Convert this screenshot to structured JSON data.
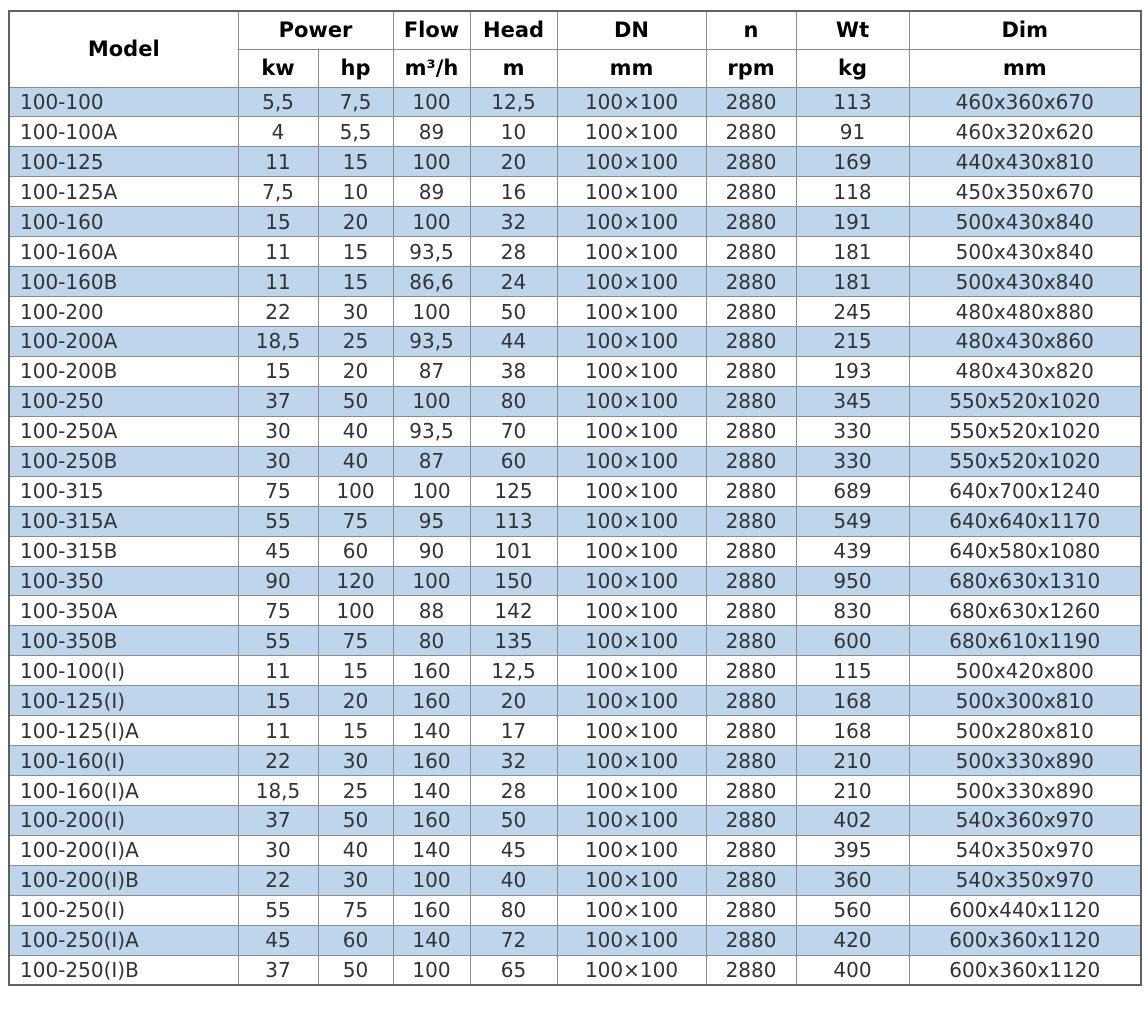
{
  "colors": {
    "stripe": "#bdd6ec",
    "grid": "#8c8c8c",
    "outer_border": "#606060",
    "text": "#333333",
    "header_text": "#000000",
    "background": "#ffffff"
  },
  "table": {
    "header": {
      "model": "Model",
      "power": "Power",
      "power_kw": "kw",
      "power_hp": "hp",
      "flow": "Flow",
      "flow_unit": "m³/h",
      "head": "Head",
      "head_unit": "m",
      "dn": "DN",
      "dn_unit": "mm",
      "n": "n",
      "n_unit": "rpm",
      "wt": "Wt",
      "wt_unit": "kg",
      "dim": "Dim",
      "dim_unit": "mm"
    },
    "column_keys": [
      "model",
      "power-kw",
      "power-hp",
      "flow",
      "head",
      "dn",
      "n",
      "wt",
      "dim"
    ],
    "rows": [
      [
        "100-100",
        "5,5",
        "7,5",
        "100",
        "12,5",
        "100×100",
        "2880",
        "113",
        "460x360x670"
      ],
      [
        "100-100A",
        "4",
        "5,5",
        "89",
        "10",
        "100×100",
        "2880",
        "91",
        "460x320x620"
      ],
      [
        "100-125",
        "11",
        "15",
        "100",
        "20",
        "100×100",
        "2880",
        "169",
        "440x430x810"
      ],
      [
        "100-125A",
        "7,5",
        "10",
        "89",
        "16",
        "100×100",
        "2880",
        "118",
        "450x350x670"
      ],
      [
        "100-160",
        "15",
        "20",
        "100",
        "32",
        "100×100",
        "2880",
        "191",
        "500x430x840"
      ],
      [
        "100-160A",
        "11",
        "15",
        "93,5",
        "28",
        "100×100",
        "2880",
        "181",
        "500x430x840"
      ],
      [
        "100-160B",
        "11",
        "15",
        "86,6",
        "24",
        "100×100",
        "2880",
        "181",
        "500x430x840"
      ],
      [
        "100-200",
        "22",
        "30",
        "100",
        "50",
        "100×100",
        "2880",
        "245",
        "480x480x880"
      ],
      [
        "100-200A",
        "18,5",
        "25",
        "93,5",
        "44",
        "100×100",
        "2880",
        "215",
        "480x430x860"
      ],
      [
        "100-200B",
        "15",
        "20",
        "87",
        "38",
        "100×100",
        "2880",
        "193",
        "480x430x820"
      ],
      [
        "100-250",
        "37",
        "50",
        "100",
        "80",
        "100×100",
        "2880",
        "345",
        "550x520x1020"
      ],
      [
        "100-250A",
        "30",
        "40",
        "93,5",
        "70",
        "100×100",
        "2880",
        "330",
        "550x520x1020"
      ],
      [
        "100-250B",
        "30",
        "40",
        "87",
        "60",
        "100×100",
        "2880",
        "330",
        "550x520x1020"
      ],
      [
        "100-315",
        "75",
        "100",
        "100",
        "125",
        "100×100",
        "2880",
        "689",
        "640x700x1240"
      ],
      [
        "100-315A",
        "55",
        "75",
        "95",
        "113",
        "100×100",
        "2880",
        "549",
        "640x640x1170"
      ],
      [
        "100-315B",
        "45",
        "60",
        "90",
        "101",
        "100×100",
        "2880",
        "439",
        "640x580x1080"
      ],
      [
        "100-350",
        "90",
        "120",
        "100",
        "150",
        "100×100",
        "2880",
        "950",
        "680x630x1310"
      ],
      [
        "100-350A",
        "75",
        "100",
        "88",
        "142",
        "100×100",
        "2880",
        "830",
        "680x630x1260"
      ],
      [
        "100-350B",
        "55",
        "75",
        "80",
        "135",
        "100×100",
        "2880",
        "600",
        "680x610x1190"
      ],
      [
        "100-100(I)",
        "11",
        "15",
        "160",
        "12,5",
        "100×100",
        "2880",
        "115",
        "500x420x800"
      ],
      [
        "100-125(I)",
        "15",
        "20",
        "160",
        "20",
        "100×100",
        "2880",
        "168",
        "500x300x810"
      ],
      [
        "100-125(I)A",
        "11",
        "15",
        "140",
        "17",
        "100×100",
        "2880",
        "168",
        "500x280x810"
      ],
      [
        "100-160(I)",
        "22",
        "30",
        "160",
        "32",
        "100×100",
        "2880",
        "210",
        "500x330x890"
      ],
      [
        "100-160(I)A",
        "18,5",
        "25",
        "140",
        "28",
        "100×100",
        "2880",
        "210",
        "500x330x890"
      ],
      [
        "100-200(I)",
        "37",
        "50",
        "160",
        "50",
        "100×100",
        "2880",
        "402",
        "540x360x970"
      ],
      [
        "100-200(I)A",
        "30",
        "40",
        "140",
        "45",
        "100×100",
        "2880",
        "395",
        "540x350x970"
      ],
      [
        "100-200(I)B",
        "22",
        "30",
        "100",
        "40",
        "100×100",
        "2880",
        "360",
        "540x350x970"
      ],
      [
        "100-250(I)",
        "55",
        "75",
        "160",
        "80",
        "100×100",
        "2880",
        "560",
        "600x440x1120"
      ],
      [
        "100-250(I)A",
        "45",
        "60",
        "140",
        "72",
        "100×100",
        "2880",
        "420",
        "600x360x1120"
      ],
      [
        "100-250(I)B",
        "37",
        "50",
        "100",
        "65",
        "100×100",
        "2880",
        "400",
        "600x360x1120"
      ]
    ]
  }
}
